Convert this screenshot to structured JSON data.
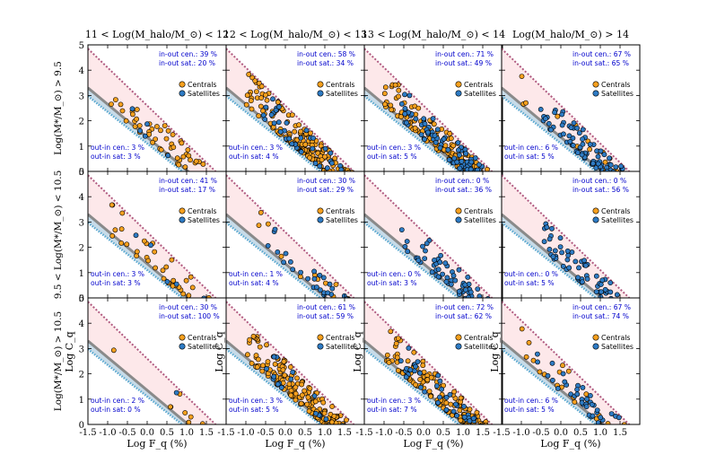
{
  "figure": {
    "column_titles": [
      "11 < Log(M_halo/M_⊙) < 12",
      "12 < Log(M_halo/M_⊙) < 13",
      "13 < Log(M_halo/M_⊙) < 14",
      "Log(M_halo/M_⊙) > 14"
    ],
    "row_labels": [
      "Log(M*/M_⊙) > 9.5",
      "9.5 < Log(M*/M_⊙) < 10.5",
      "Log(M*/M_⊙) > 10.5"
    ],
    "xlabel": "Log F_q (%)",
    "ylabel": "Log C_q",
    "legend": [
      {
        "label": "Centrals",
        "color": "#f7a01e"
      },
      {
        "label": "Satellites",
        "color": "#2e7bc4"
      }
    ],
    "x_ticks": [
      "-1.5",
      "-1.0",
      "-0.5",
      "0.0",
      "0.5",
      "1.0",
      "1.5"
    ],
    "y_ticks": [
      "0",
      "1",
      "2",
      "3",
      "4",
      "5"
    ],
    "y_ticks_clipped": [
      "1",
      "2",
      "3",
      "4"
    ],
    "colors": {
      "region_fill": "#fde8ea",
      "centrals": "#f7a01e",
      "satellites": "#2e7bc4",
      "annotation_text": "#0000cc",
      "upper_line": "#b05a80",
      "lower_line": "#5aa8d0",
      "mid_line": "#8a8a8a",
      "band": "#c7dbe8"
    }
  },
  "chart_data": {
    "type": "scatter",
    "layout": "3x4 grid of panels",
    "xlim": [
      -1.5,
      2.0
    ],
    "ylim": [
      0,
      5
    ],
    "series": [
      "Centrals",
      "Satellites"
    ],
    "panels": [
      {
        "row": 0,
        "col": 0,
        "in_out_cen": "in-out cen.: 39 %",
        "in_out_sat": "in-out sat.: 20 %",
        "out_in_cen": "out-in cen.: 3 %",
        "out_in_sat": "out-in sat: 3 %",
        "n_centrals": 55,
        "n_satellites": 6
      },
      {
        "row": 0,
        "col": 1,
        "in_out_cen": "in-out cen.: 58 %",
        "in_out_sat": "in-out sat.: 34 %",
        "out_in_cen": "out-in cen.: 3 %",
        "out_in_sat": "out-in sat: 4 %",
        "n_centrals": 200,
        "n_satellites": 45
      },
      {
        "row": 0,
        "col": 2,
        "in_out_cen": "in-out cen.: 71 %",
        "in_out_sat": "in-out sat.: 49 %",
        "out_in_cen": "out-in cen.: 3 %",
        "out_in_sat": "out-in sat: 5 %",
        "n_centrals": 170,
        "n_satellites": 110
      },
      {
        "row": 0,
        "col": 3,
        "in_out_cen": "in-out cen.: 67 %",
        "in_out_sat": "in-out sat.: 65 %",
        "out_in_cen": "out-in cen.: 6 %",
        "out_in_sat": "out-in sat: 5 %",
        "n_centrals": 25,
        "n_satellites": 90
      },
      {
        "row": 1,
        "col": 0,
        "in_out_cen": "in-out cen.: 41 %",
        "in_out_sat": "in-out sat.: 17 %",
        "out_in_cen": "out-in cen.: 3 %",
        "out_in_sat": "out-in sat: 3 %",
        "n_centrals": 45,
        "n_satellites": 5
      },
      {
        "row": 1,
        "col": 1,
        "in_out_cen": "in-out cen.: 30 %",
        "in_out_sat": "in-out sat.: 29 %",
        "out_in_cen": "out-in cen.: 1 %",
        "out_in_sat": "out-in sat: 4 %",
        "n_centrals": 12,
        "n_satellites": 35
      },
      {
        "row": 1,
        "col": 2,
        "in_out_cen": "in-out cen.: 0 %",
        "in_out_sat": "in-out sat.: 36 %",
        "out_in_cen": "out-in cen.: 0 %",
        "out_in_sat": "out-in sat: 3 %",
        "n_centrals": 0,
        "n_satellites": 75
      },
      {
        "row": 1,
        "col": 3,
        "in_out_cen": "in-out cen.: 0 %",
        "in_out_sat": "in-out sat.: 56 %",
        "out_in_cen": "out-in cen.: 0 %",
        "out_in_sat": "out-in sat: 5 %",
        "n_centrals": 0,
        "n_satellites": 70
      },
      {
        "row": 2,
        "col": 0,
        "in_out_cen": "in-out cen.: 30 %",
        "in_out_sat": "in-out sat.: 100 %",
        "out_in_cen": "out-in cen.: 2 %",
        "out_in_sat": "out-in sat: 0 %",
        "n_centrals": 12,
        "n_satellites": 1
      },
      {
        "row": 2,
        "col": 1,
        "in_out_cen": "in-out cen.: 61 %",
        "in_out_sat": "in-out sat.: 59 %",
        "out_in_cen": "out-in cen.: 3 %",
        "out_in_sat": "out-in sat: 5 %",
        "n_centrals": 190,
        "n_satellites": 20
      },
      {
        "row": 2,
        "col": 2,
        "in_out_cen": "in-out cen.: 72 %",
        "in_out_sat": "in-out sat.: 62 %",
        "out_in_cen": "out-in cen.: 3 %",
        "out_in_sat": "out-in sat: 7 %",
        "n_centrals": 170,
        "n_satellites": 45
      },
      {
        "row": 2,
        "col": 3,
        "in_out_cen": "in-out cen.: 67 %",
        "in_out_sat": "in-out sat.: 74 %",
        "out_in_cen": "out-in cen.: 6 %",
        "out_in_sat": "out-in sat: 5 %",
        "n_centrals": 25,
        "n_satellites": 40
      }
    ]
  }
}
